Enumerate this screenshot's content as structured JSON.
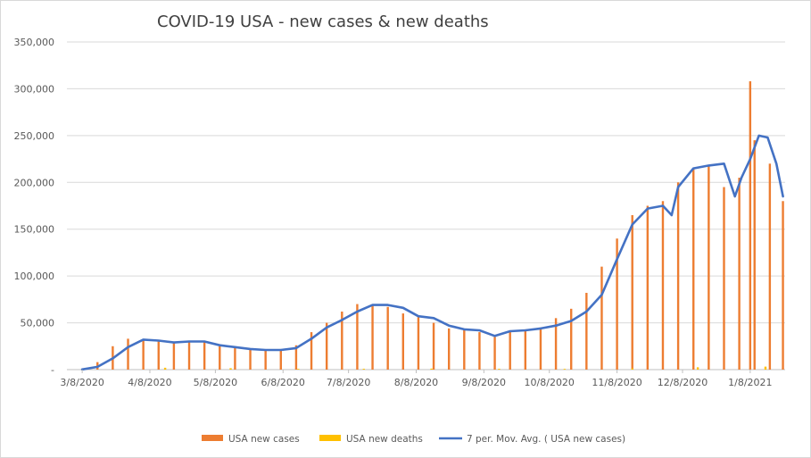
{
  "chart_data": {
    "type": "bar",
    "title": "COVID-19 USA - new cases & new deaths",
    "xlabel": "",
    "ylabel": "",
    "ylim": [
      0,
      350000
    ],
    "yticks": [
      "-",
      "50,000",
      "100,000",
      "150,000",
      "200,000",
      "250,000",
      "300,000",
      "350,000"
    ],
    "ytick_values": [
      0,
      50000,
      100000,
      150000,
      200000,
      250000,
      300000,
      350000
    ],
    "xticks": [
      "3/8/2020",
      "4/8/2020",
      "5/8/2020",
      "6/8/2020",
      "7/8/2020",
      "8/8/2020",
      "9/8/2020",
      "10/8/2020",
      "11/8/2020",
      "12/8/2020",
      "1/8/2021"
    ],
    "xtick_values": [
      "2020-03-08",
      "2020-04-08",
      "2020-05-08",
      "2020-06-08",
      "2020-07-08",
      "2020-08-08",
      "2020-09-08",
      "2020-10-08",
      "2020-11-08",
      "2020-12-08",
      "2021-01-08"
    ],
    "x_range": [
      "2020-03-01",
      "2021-01-24"
    ],
    "grid": true,
    "legend_position": "bottom",
    "series": [
      {
        "name": "USA new cases",
        "type": "bar",
        "color": "#ED7D31",
        "x": [
          "2020-03-08",
          "2020-03-15",
          "2020-03-22",
          "2020-03-29",
          "2020-04-05",
          "2020-04-12",
          "2020-04-19",
          "2020-04-26",
          "2020-05-03",
          "2020-05-10",
          "2020-05-17",
          "2020-05-24",
          "2020-05-31",
          "2020-06-07",
          "2020-06-14",
          "2020-06-21",
          "2020-06-28",
          "2020-07-05",
          "2020-07-12",
          "2020-07-19",
          "2020-07-26",
          "2020-08-02",
          "2020-08-09",
          "2020-08-16",
          "2020-08-23",
          "2020-08-30",
          "2020-09-06",
          "2020-09-13",
          "2020-09-20",
          "2020-09-27",
          "2020-10-04",
          "2020-10-11",
          "2020-10-18",
          "2020-10-25",
          "2020-11-01",
          "2020-11-08",
          "2020-11-15",
          "2020-11-22",
          "2020-11-29",
          "2020-12-06",
          "2020-12-13",
          "2020-12-20",
          "2020-12-27",
          "2021-01-03",
          "2021-01-08",
          "2021-01-10",
          "2021-01-17",
          "2021-01-23"
        ],
        "values": [
          1000,
          8000,
          25000,
          33000,
          32000,
          30000,
          30000,
          31000,
          30000,
          25000,
          23000,
          22000,
          21000,
          22000,
          26000,
          40000,
          50000,
          62000,
          70000,
          69000,
          67000,
          60000,
          56000,
          50000,
          44000,
          43000,
          40000,
          35000,
          42000,
          43000,
          45000,
          55000,
          65000,
          82000,
          110000,
          140000,
          165000,
          175000,
          180000,
          200000,
          215000,
          218000,
          195000,
          205000,
          308000,
          245000,
          220000,
          180000
        ]
      },
      {
        "name": "USA new deaths",
        "type": "bar",
        "color": "#FFC000",
        "x": [
          "2020-03-08",
          "2020-04-15",
          "2020-05-15",
          "2020-06-15",
          "2020-07-15",
          "2020-08-15",
          "2020-09-15",
          "2020-10-15",
          "2020-11-15",
          "2020-12-15",
          "2021-01-15"
        ],
        "values": [
          0,
          2000,
          1500,
          800,
          900,
          1100,
          900,
          800,
          1300,
          2500,
          3200
        ]
      },
      {
        "name": "7 per. Mov. Avg. ( USA new cases)",
        "type": "line",
        "color": "#4472C4",
        "x": [
          "2020-03-08",
          "2020-03-15",
          "2020-03-22",
          "2020-03-29",
          "2020-04-05",
          "2020-04-12",
          "2020-04-19",
          "2020-04-26",
          "2020-05-03",
          "2020-05-10",
          "2020-05-17",
          "2020-05-24",
          "2020-05-31",
          "2020-06-07",
          "2020-06-14",
          "2020-06-21",
          "2020-06-28",
          "2020-07-05",
          "2020-07-12",
          "2020-07-19",
          "2020-07-26",
          "2020-08-02",
          "2020-08-09",
          "2020-08-16",
          "2020-08-23",
          "2020-08-30",
          "2020-09-06",
          "2020-09-13",
          "2020-09-20",
          "2020-09-27",
          "2020-10-04",
          "2020-10-11",
          "2020-10-18",
          "2020-10-25",
          "2020-11-01",
          "2020-11-08",
          "2020-11-15",
          "2020-11-22",
          "2020-11-29",
          "2020-12-03",
          "2020-12-06",
          "2020-12-13",
          "2020-12-20",
          "2020-12-27",
          "2021-01-01",
          "2021-01-04",
          "2021-01-08",
          "2021-01-12",
          "2021-01-16",
          "2021-01-20",
          "2021-01-23"
        ],
        "values": [
          200,
          3000,
          12000,
          24000,
          32000,
          31000,
          29000,
          30000,
          30000,
          26000,
          24000,
          22000,
          21000,
          21000,
          23000,
          33000,
          45000,
          53000,
          62000,
          69000,
          69000,
          66000,
          57000,
          55000,
          47000,
          43000,
          42000,
          36000,
          41000,
          42000,
          44000,
          47000,
          52000,
          62000,
          80000,
          118000,
          155000,
          172000,
          175000,
          165000,
          195000,
          215000,
          218000,
          220000,
          185000,
          205000,
          225000,
          250000,
          248000,
          220000,
          185000
        ]
      }
    ]
  }
}
